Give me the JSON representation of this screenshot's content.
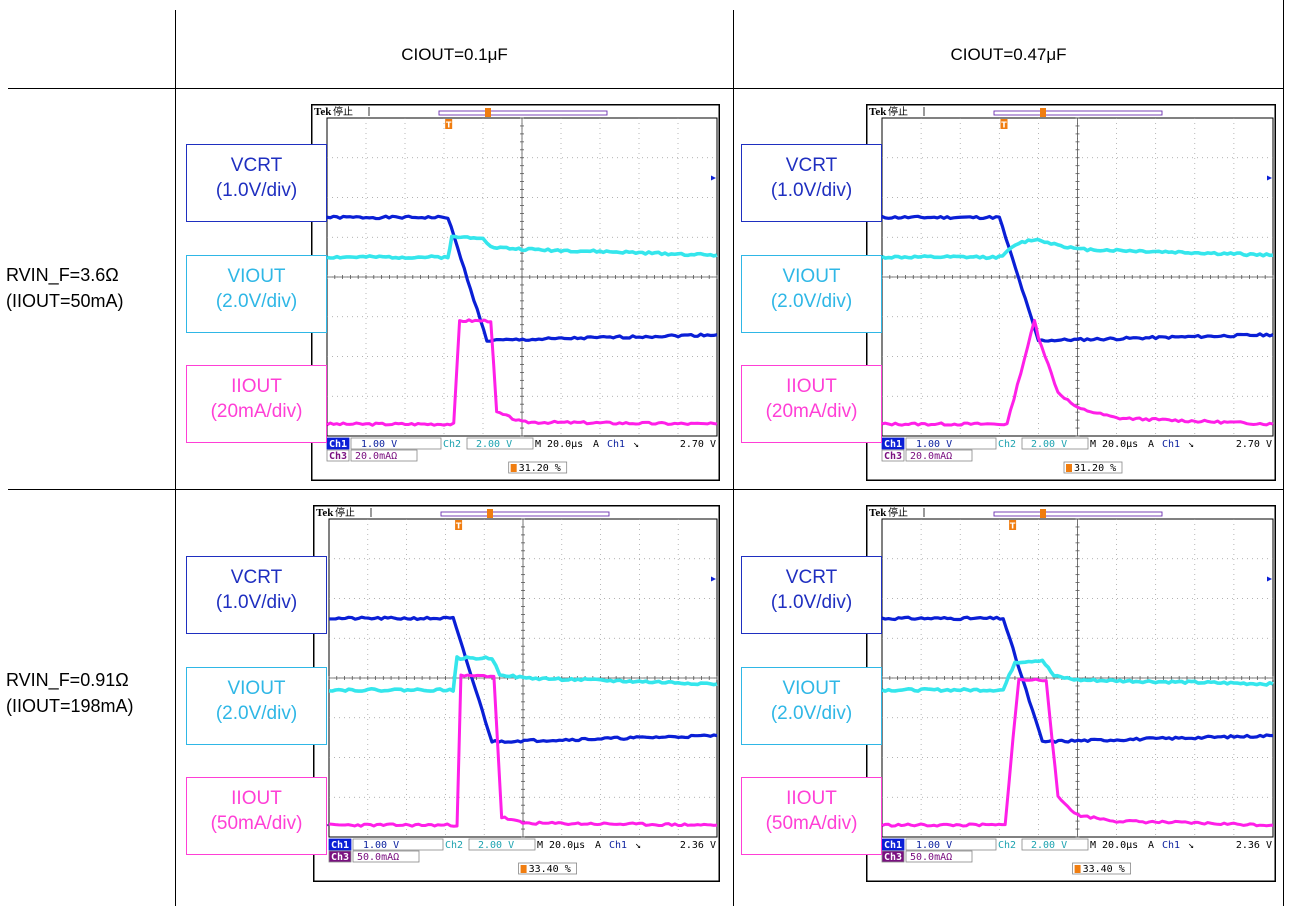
{
  "columns": [
    "CIOUT=0.1μF",
    "CIOUT=0.47μF"
  ],
  "rows": [
    {
      "line1": "RVIN_F=3.6Ω",
      "line2": "(IIOUT=50mA)"
    },
    {
      "line1": "RVIN_F=0.91Ω",
      "line2": "(IIOUT=198mA)"
    }
  ],
  "annotations": {
    "vcrt": {
      "name": "VCRT",
      "scale": "(1.0V/div)",
      "color": "#1f2fc0"
    },
    "viout": {
      "name": "VIOUT",
      "scale": "(2.0V/div)",
      "color": "#2fb7e6"
    },
    "iiout_row1": {
      "name": "IIOUT",
      "scale": "(20mA/div)",
      "color": "#ff3fd6"
    },
    "iiout_row2": {
      "name": "IIOUT",
      "scale": "(50mA/div)",
      "color": "#ff3fd6"
    }
  },
  "scope_text": {
    "brand": "Tek",
    "state": "停止",
    "ch1_label": "Ch1",
    "ch1_scale": "1.00 V",
    "ch2_label": "Ch2",
    "ch2_scale": "2.00 V",
    "ch3_label": "Ch3",
    "timebase": "M 20.0μs",
    "trig_mode": "A",
    "trig_ch": "Ch1",
    "trig_slope": "↘",
    "row1": {
      "ch3_scale": "20.0mAΩ",
      "trig_level": "2.70 V",
      "trig_pos": "31.20 %"
    },
    "row2": {
      "ch3_scale": "50.0mAΩ",
      "trig_level": "2.36 V",
      "trig_pos": "33.40 %"
    }
  },
  "colors": {
    "ch1": "#0a1fd6",
    "ch2": "#35e6ec",
    "ch3": "#ff1fe8",
    "trigger": "#f07d10"
  },
  "chart_data": [
    {
      "type": "line",
      "x_unit": "μs",
      "x_per_div": 20,
      "x_divs": 10,
      "trigger_offset_div": 3.12,
      "series": [
        {
          "name": "VCRT",
          "points": [
            [
              0,
              5.5
            ],
            [
              3.1,
              5.5
            ],
            [
              4.1,
              2.4
            ],
            [
              10,
              2.55
            ]
          ]
        },
        {
          "name": "VIOUT",
          "points": [
            [
              0,
              4.5
            ],
            [
              3.1,
              4.5
            ],
            [
              3.2,
              5.0
            ],
            [
              4.0,
              5.0
            ],
            [
              4.2,
              4.75
            ],
            [
              5,
              4.7
            ],
            [
              10,
              4.55
            ]
          ]
        },
        {
          "name": "IIOUT",
          "points": [
            [
              0,
              0.3
            ],
            [
              3.25,
              0.3
            ],
            [
              3.4,
              2.9
            ],
            [
              4.2,
              2.9
            ],
            [
              4.35,
              0.6
            ],
            [
              5,
              0.35
            ],
            [
              10,
              0.3
            ]
          ]
        }
      ]
    },
    {
      "type": "line",
      "x_unit": "μs",
      "x_per_div": 20,
      "x_divs": 10,
      "trigger_offset_div": 3.12,
      "series": [
        {
          "name": "VCRT",
          "points": [
            [
              0,
              5.5
            ],
            [
              3.0,
              5.5
            ],
            [
              4.0,
              2.4
            ],
            [
              10,
              2.55
            ]
          ]
        },
        {
          "name": "VIOUT",
          "points": [
            [
              0,
              4.5
            ],
            [
              3.0,
              4.5
            ],
            [
              3.5,
              4.85
            ],
            [
              3.9,
              4.95
            ],
            [
              5,
              4.7
            ],
            [
              10,
              4.55
            ]
          ]
        },
        {
          "name": "IIOUT",
          "points": [
            [
              0,
              0.3
            ],
            [
              3.2,
              0.3
            ],
            [
              3.9,
              2.9
            ],
            [
              4.0,
              2.5
            ],
            [
              4.5,
              1.1
            ],
            [
              5,
              0.7
            ],
            [
              6,
              0.45
            ],
            [
              10,
              0.3
            ]
          ]
        }
      ]
    },
    {
      "type": "line",
      "x_unit": "μs",
      "x_per_div": 20,
      "x_divs": 10,
      "trigger_offset_div": 3.34,
      "series": [
        {
          "name": "VCRT",
          "points": [
            [
              0,
              5.5
            ],
            [
              3.2,
              5.5
            ],
            [
              4.2,
              2.4
            ],
            [
              10,
              2.55
            ]
          ]
        },
        {
          "name": "VIOUT",
          "points": [
            [
              0,
              3.7
            ],
            [
              3.2,
              3.7
            ],
            [
              3.3,
              4.5
            ],
            [
              4.2,
              4.5
            ],
            [
              4.4,
              4.1
            ],
            [
              5,
              4.0
            ],
            [
              10,
              3.85
            ]
          ]
        },
        {
          "name": "IIOUT",
          "points": [
            [
              0,
              0.3
            ],
            [
              3.3,
              0.3
            ],
            [
              3.4,
              4.05
            ],
            [
              4.25,
              4.05
            ],
            [
              4.45,
              0.5
            ],
            [
              5,
              0.35
            ],
            [
              10,
              0.3
            ]
          ]
        }
      ]
    },
    {
      "type": "line",
      "x_unit": "μs",
      "x_per_div": 20,
      "x_divs": 10,
      "trigger_offset_div": 3.34,
      "series": [
        {
          "name": "VCRT",
          "points": [
            [
              0,
              5.5
            ],
            [
              3.1,
              5.5
            ],
            [
              4.1,
              2.4
            ],
            [
              10,
              2.55
            ]
          ]
        },
        {
          "name": "VIOUT",
          "points": [
            [
              0,
              3.7
            ],
            [
              3.1,
              3.7
            ],
            [
              3.4,
              4.4
            ],
            [
              4.1,
              4.45
            ],
            [
              4.4,
              4.05
            ],
            [
              5,
              3.95
            ],
            [
              10,
              3.85
            ]
          ]
        },
        {
          "name": "IIOUT",
          "points": [
            [
              0,
              0.3
            ],
            [
              3.15,
              0.3
            ],
            [
              3.35,
              2.5
            ],
            [
              3.5,
              3.95
            ],
            [
              4.2,
              3.95
            ],
            [
              4.5,
              1.0
            ],
            [
              5,
              0.55
            ],
            [
              6,
              0.4
            ],
            [
              10,
              0.3
            ]
          ]
        }
      ]
    }
  ]
}
